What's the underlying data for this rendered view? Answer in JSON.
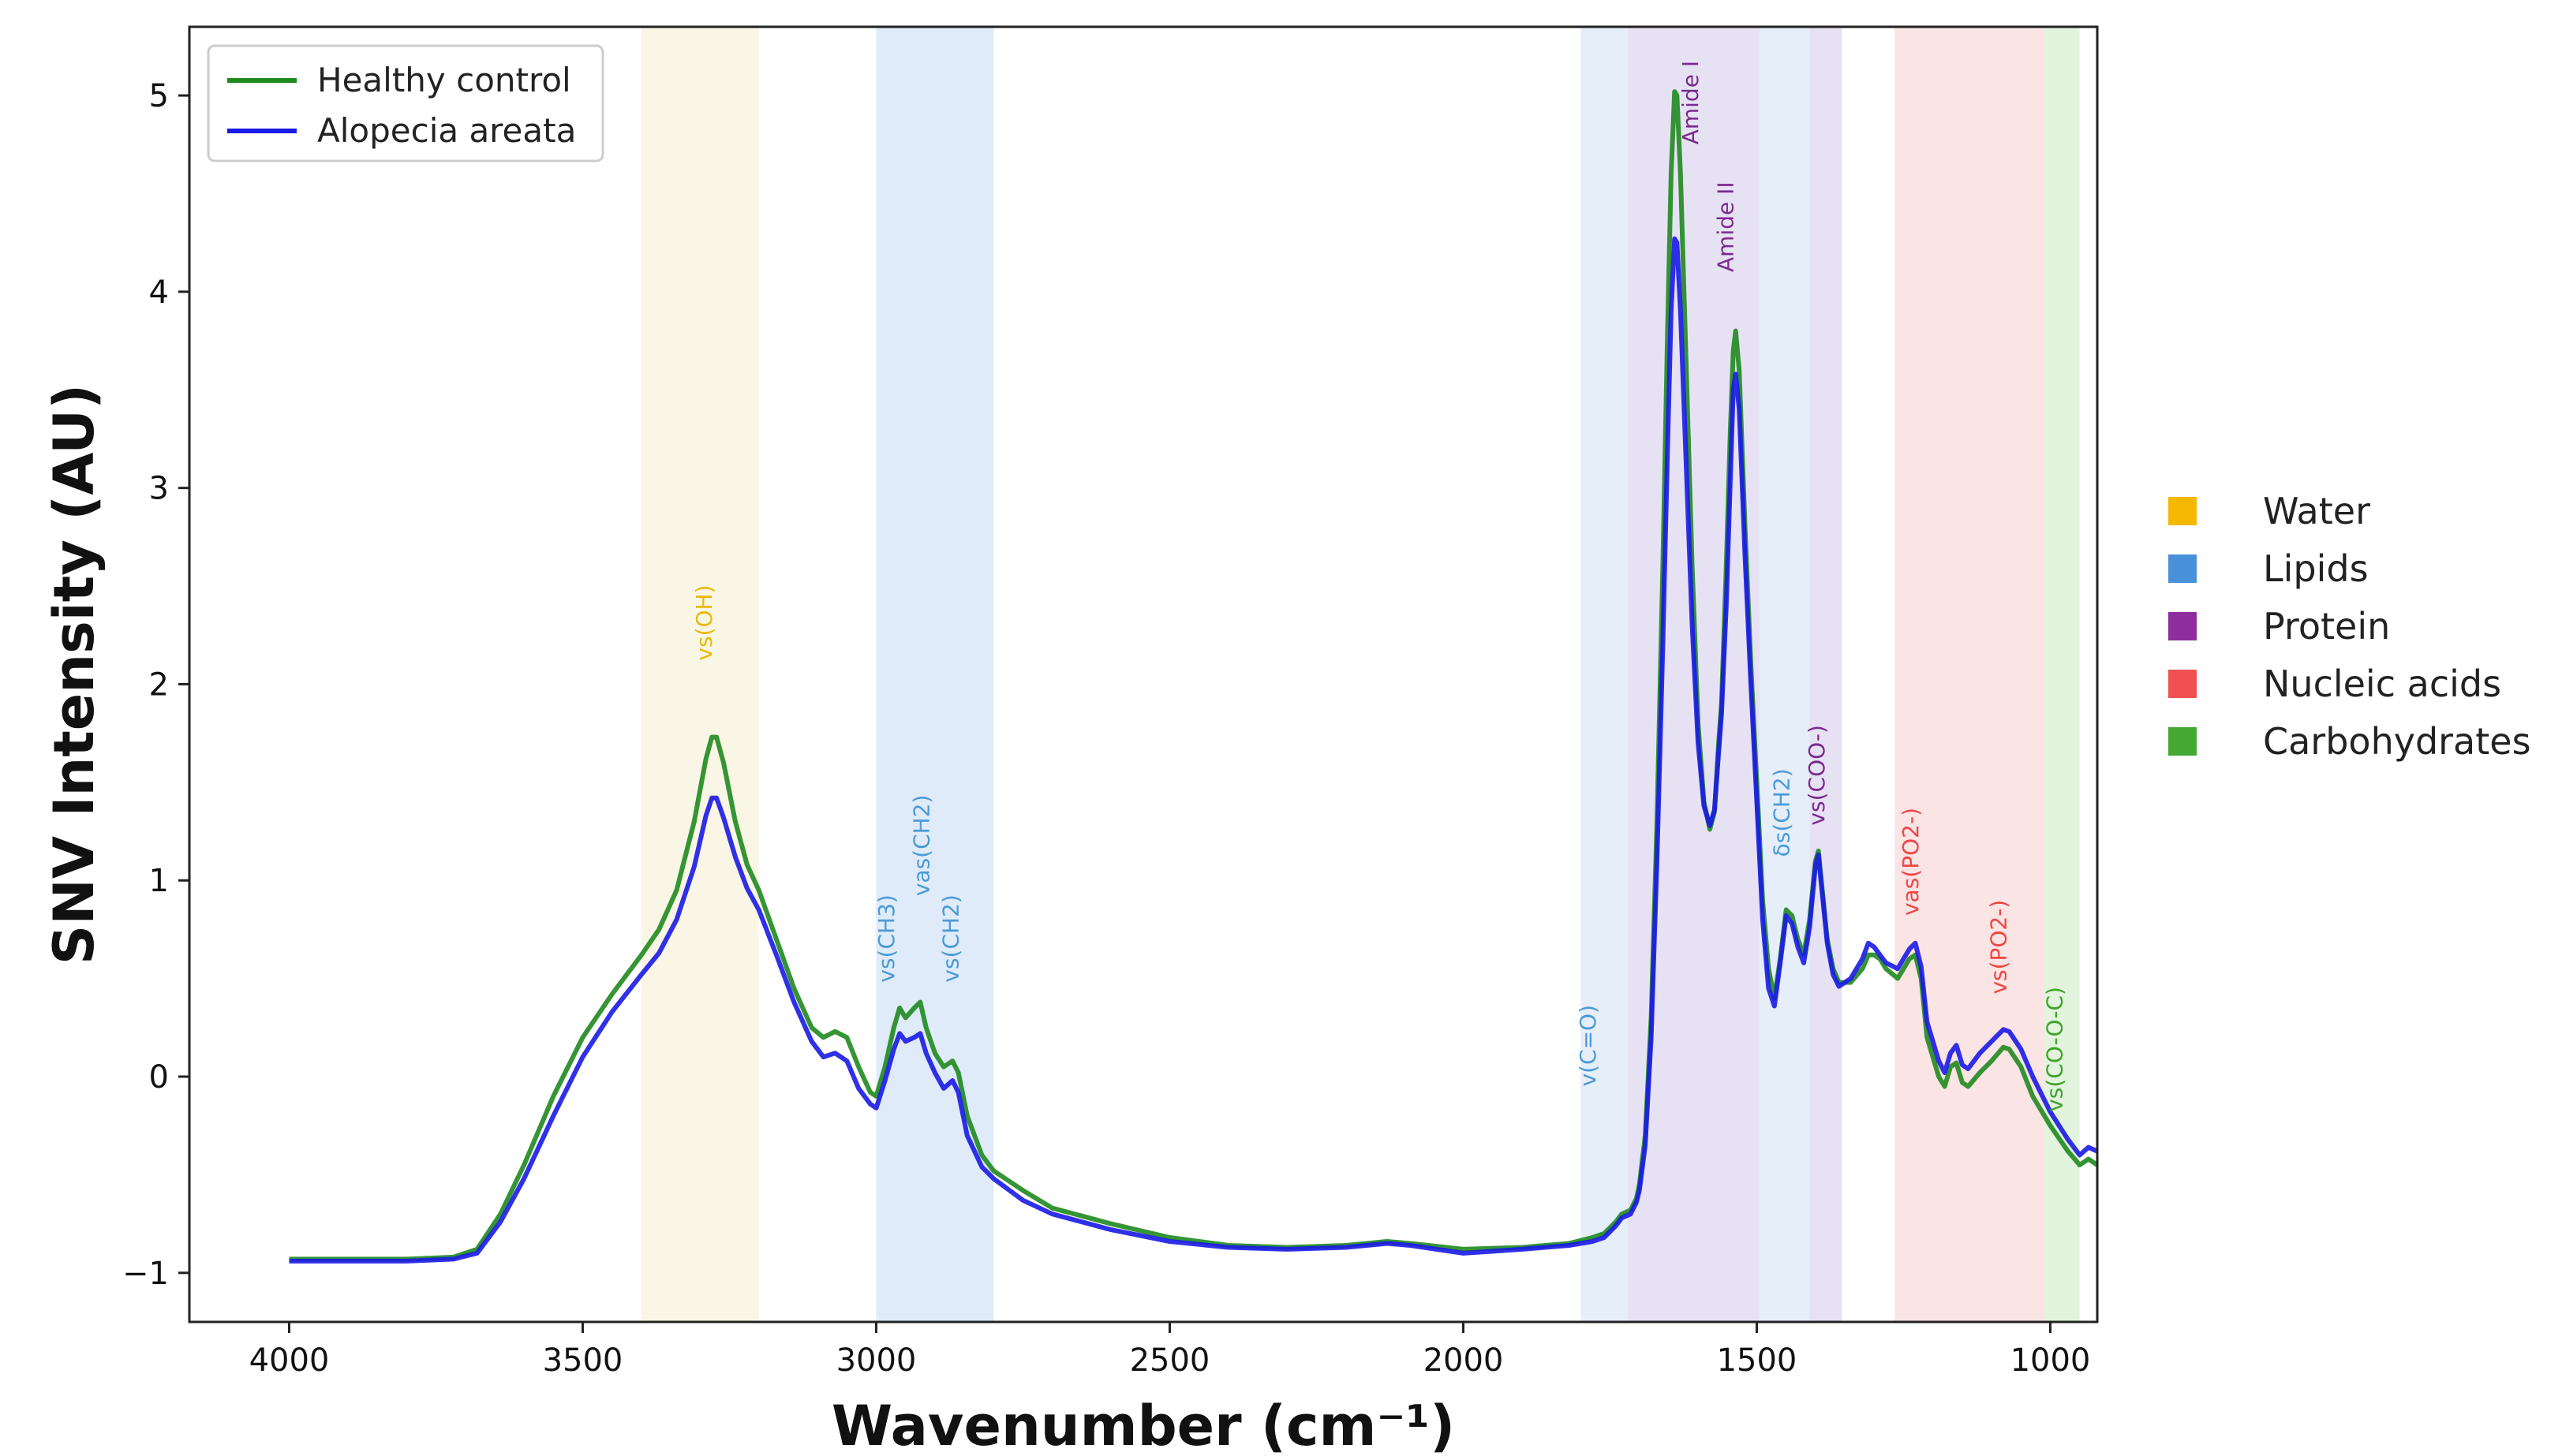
{
  "chart_data": {
    "type": "line",
    "title": "",
    "xlabel": "Wavenumber (cm⁻¹)",
    "ylabel": "SNV Intensity (AU)",
    "xlim": [
      4170,
      920
    ],
    "ylim": [
      -1.25,
      5.35
    ],
    "x_reversed": true,
    "x_ticks": [
      4000,
      3500,
      3000,
      2500,
      2000,
      1500,
      1000
    ],
    "x_tick_labels": [
      "4000",
      "3500",
      "3000",
      "2500",
      "2000",
      "1500",
      "1000"
    ],
    "y_ticks": [
      -1,
      0,
      1,
      2,
      3,
      4,
      5
    ],
    "y_tick_labels": [
      "−1",
      "0",
      "1",
      "2",
      "3",
      "4",
      "5"
    ],
    "legend_position": "top-left",
    "series": [
      {
        "name": "Healthy control",
        "color": "#1f8a1f",
        "points": [
          [
            4000,
            -0.93
          ],
          [
            3900,
            -0.93
          ],
          [
            3800,
            -0.93
          ],
          [
            3720,
            -0.92
          ],
          [
            3680,
            -0.88
          ],
          [
            3640,
            -0.7
          ],
          [
            3600,
            -0.45
          ],
          [
            3550,
            -0.1
          ],
          [
            3500,
            0.2
          ],
          [
            3450,
            0.42
          ],
          [
            3400,
            0.62
          ],
          [
            3370,
            0.75
          ],
          [
            3340,
            0.95
          ],
          [
            3310,
            1.3
          ],
          [
            3290,
            1.62
          ],
          [
            3280,
            1.73
          ],
          [
            3272,
            1.73
          ],
          [
            3260,
            1.6
          ],
          [
            3240,
            1.3
          ],
          [
            3220,
            1.08
          ],
          [
            3200,
            0.95
          ],
          [
            3170,
            0.7
          ],
          [
            3140,
            0.45
          ],
          [
            3110,
            0.25
          ],
          [
            3090,
            0.2
          ],
          [
            3070,
            0.23
          ],
          [
            3050,
            0.2
          ],
          [
            3030,
            0.05
          ],
          [
            3010,
            -0.08
          ],
          [
            3000,
            -0.1
          ],
          [
            2985,
            0.05
          ],
          [
            2970,
            0.25
          ],
          [
            2960,
            0.35
          ],
          [
            2950,
            0.3
          ],
          [
            2935,
            0.35
          ],
          [
            2925,
            0.38
          ],
          [
            2915,
            0.25
          ],
          [
            2900,
            0.12
          ],
          [
            2885,
            0.05
          ],
          [
            2870,
            0.08
          ],
          [
            2860,
            0.02
          ],
          [
            2845,
            -0.2
          ],
          [
            2820,
            -0.4
          ],
          [
            2800,
            -0.48
          ],
          [
            2750,
            -0.58
          ],
          [
            2700,
            -0.67
          ],
          [
            2600,
            -0.75
          ],
          [
            2500,
            -0.82
          ],
          [
            2400,
            -0.86
          ],
          [
            2300,
            -0.87
          ],
          [
            2200,
            -0.86
          ],
          [
            2130,
            -0.84
          ],
          [
            2090,
            -0.85
          ],
          [
            2000,
            -0.88
          ],
          [
            1900,
            -0.87
          ],
          [
            1820,
            -0.85
          ],
          [
            1780,
            -0.82
          ],
          [
            1760,
            -0.8
          ],
          [
            1740,
            -0.74
          ],
          [
            1730,
            -0.7
          ],
          [
            1715,
            -0.68
          ],
          [
            1705,
            -0.62
          ],
          [
            1700,
            -0.55
          ],
          [
            1690,
            -0.3
          ],
          [
            1680,
            0.3
          ],
          [
            1670,
            1.3
          ],
          [
            1660,
            2.6
          ],
          [
            1652,
            3.8
          ],
          [
            1646,
            4.6
          ],
          [
            1640,
            5.02
          ],
          [
            1636,
            5.0
          ],
          [
            1630,
            4.6
          ],
          [
            1620,
            3.6
          ],
          [
            1610,
            2.6
          ],
          [
            1600,
            1.8
          ],
          [
            1590,
            1.4
          ],
          [
            1580,
            1.26
          ],
          [
            1572,
            1.35
          ],
          [
            1565,
            1.7
          ],
          [
            1560,
            1.9
          ],
          [
            1552,
            2.6
          ],
          [
            1545,
            3.3
          ],
          [
            1540,
            3.7
          ],
          [
            1536,
            3.8
          ],
          [
            1530,
            3.6
          ],
          [
            1520,
            2.8
          ],
          [
            1510,
            2.1
          ],
          [
            1500,
            1.5
          ],
          [
            1490,
            0.9
          ],
          [
            1480,
            0.55
          ],
          [
            1470,
            0.4
          ],
          [
            1460,
            0.6
          ],
          [
            1450,
            0.85
          ],
          [
            1440,
            0.82
          ],
          [
            1430,
            0.7
          ],
          [
            1420,
            0.62
          ],
          [
            1410,
            0.8
          ],
          [
            1400,
            1.1
          ],
          [
            1395,
            1.15
          ],
          [
            1390,
            1.0
          ],
          [
            1380,
            0.7
          ],
          [
            1370,
            0.55
          ],
          [
            1360,
            0.48
          ],
          [
            1340,
            0.48
          ],
          [
            1320,
            0.55
          ],
          [
            1310,
            0.62
          ],
          [
            1300,
            0.62
          ],
          [
            1290,
            0.6
          ],
          [
            1280,
            0.55
          ],
          [
            1260,
            0.5
          ],
          [
            1240,
            0.6
          ],
          [
            1230,
            0.62
          ],
          [
            1220,
            0.5
          ],
          [
            1210,
            0.2
          ],
          [
            1190,
            0.0
          ],
          [
            1180,
            -0.05
          ],
          [
            1170,
            0.05
          ],
          [
            1160,
            0.07
          ],
          [
            1150,
            -0.03
          ],
          [
            1140,
            -0.05
          ],
          [
            1120,
            0.02
          ],
          [
            1100,
            0.08
          ],
          [
            1080,
            0.15
          ],
          [
            1070,
            0.14
          ],
          [
            1050,
            0.05
          ],
          [
            1030,
            -0.1
          ],
          [
            1000,
            -0.25
          ],
          [
            970,
            -0.38
          ],
          [
            950,
            -0.45
          ],
          [
            935,
            -0.42
          ],
          [
            920,
            -0.45
          ]
        ]
      },
      {
        "name": "Alopecia areata",
        "color": "#1a1ae6",
        "points": [
          [
            4000,
            -0.94
          ],
          [
            3900,
            -0.94
          ],
          [
            3800,
            -0.94
          ],
          [
            3720,
            -0.93
          ],
          [
            3680,
            -0.9
          ],
          [
            3640,
            -0.74
          ],
          [
            3600,
            -0.52
          ],
          [
            3550,
            -0.2
          ],
          [
            3500,
            0.1
          ],
          [
            3450,
            0.33
          ],
          [
            3400,
            0.52
          ],
          [
            3370,
            0.63
          ],
          [
            3340,
            0.8
          ],
          [
            3310,
            1.07
          ],
          [
            3290,
            1.33
          ],
          [
            3280,
            1.42
          ],
          [
            3272,
            1.42
          ],
          [
            3260,
            1.32
          ],
          [
            3240,
            1.12
          ],
          [
            3220,
            0.96
          ],
          [
            3200,
            0.85
          ],
          [
            3170,
            0.62
          ],
          [
            3140,
            0.38
          ],
          [
            3110,
            0.18
          ],
          [
            3090,
            0.1
          ],
          [
            3070,
            0.12
          ],
          [
            3050,
            0.08
          ],
          [
            3030,
            -0.06
          ],
          [
            3010,
            -0.14
          ],
          [
            3000,
            -0.16
          ],
          [
            2985,
            -0.02
          ],
          [
            2970,
            0.14
          ],
          [
            2960,
            0.22
          ],
          [
            2950,
            0.18
          ],
          [
            2935,
            0.2
          ],
          [
            2925,
            0.22
          ],
          [
            2915,
            0.12
          ],
          [
            2900,
            0.02
          ],
          [
            2885,
            -0.06
          ],
          [
            2870,
            -0.02
          ],
          [
            2860,
            -0.08
          ],
          [
            2845,
            -0.3
          ],
          [
            2820,
            -0.46
          ],
          [
            2800,
            -0.52
          ],
          [
            2750,
            -0.63
          ],
          [
            2700,
            -0.7
          ],
          [
            2600,
            -0.78
          ],
          [
            2500,
            -0.84
          ],
          [
            2400,
            -0.87
          ],
          [
            2300,
            -0.88
          ],
          [
            2200,
            -0.87
          ],
          [
            2130,
            -0.85
          ],
          [
            2090,
            -0.86
          ],
          [
            2000,
            -0.9
          ],
          [
            1900,
            -0.88
          ],
          [
            1820,
            -0.86
          ],
          [
            1780,
            -0.84
          ],
          [
            1760,
            -0.82
          ],
          [
            1740,
            -0.76
          ],
          [
            1730,
            -0.72
          ],
          [
            1715,
            -0.7
          ],
          [
            1705,
            -0.64
          ],
          [
            1700,
            -0.58
          ],
          [
            1690,
            -0.35
          ],
          [
            1680,
            0.2
          ],
          [
            1670,
            1.1
          ],
          [
            1660,
            2.2
          ],
          [
            1652,
            3.2
          ],
          [
            1646,
            3.9
          ],
          [
            1640,
            4.27
          ],
          [
            1636,
            4.25
          ],
          [
            1630,
            3.9
          ],
          [
            1620,
            3.1
          ],
          [
            1610,
            2.3
          ],
          [
            1600,
            1.7
          ],
          [
            1590,
            1.38
          ],
          [
            1580,
            1.28
          ],
          [
            1572,
            1.36
          ],
          [
            1565,
            1.65
          ],
          [
            1560,
            1.85
          ],
          [
            1552,
            2.4
          ],
          [
            1545,
            3.05
          ],
          [
            1540,
            3.5
          ],
          [
            1536,
            3.58
          ],
          [
            1530,
            3.4
          ],
          [
            1520,
            2.65
          ],
          [
            1510,
            2.0
          ],
          [
            1500,
            1.4
          ],
          [
            1490,
            0.8
          ],
          [
            1480,
            0.45
          ],
          [
            1470,
            0.36
          ],
          [
            1460,
            0.58
          ],
          [
            1450,
            0.82
          ],
          [
            1440,
            0.78
          ],
          [
            1430,
            0.66
          ],
          [
            1420,
            0.58
          ],
          [
            1410,
            0.76
          ],
          [
            1400,
            1.08
          ],
          [
            1395,
            1.13
          ],
          [
            1390,
            0.98
          ],
          [
            1380,
            0.68
          ],
          [
            1370,
            0.52
          ],
          [
            1360,
            0.46
          ],
          [
            1340,
            0.5
          ],
          [
            1320,
            0.6
          ],
          [
            1310,
            0.68
          ],
          [
            1300,
            0.66
          ],
          [
            1290,
            0.62
          ],
          [
            1280,
            0.58
          ],
          [
            1260,
            0.55
          ],
          [
            1240,
            0.65
          ],
          [
            1230,
            0.68
          ],
          [
            1220,
            0.56
          ],
          [
            1210,
            0.28
          ],
          [
            1190,
            0.08
          ],
          [
            1180,
            0.02
          ],
          [
            1170,
            0.12
          ],
          [
            1160,
            0.16
          ],
          [
            1150,
            0.06
          ],
          [
            1140,
            0.04
          ],
          [
            1120,
            0.12
          ],
          [
            1100,
            0.18
          ],
          [
            1080,
            0.24
          ],
          [
            1070,
            0.23
          ],
          [
            1050,
            0.14
          ],
          [
            1030,
            0.0
          ],
          [
            1000,
            -0.18
          ],
          [
            970,
            -0.32
          ],
          [
            950,
            -0.4
          ],
          [
            935,
            -0.36
          ],
          [
            920,
            -0.38
          ]
        ]
      }
    ],
    "bands": [
      {
        "x0": 3400,
        "x1": 3200,
        "class": "Water",
        "color": "#f5eecf",
        "opacity": 0.55
      },
      {
        "x0": 3000,
        "x1": 2800,
        "class": "Lipids",
        "color": "#c9def4",
        "opacity": 0.6
      },
      {
        "x0": 1800,
        "x1": 1720,
        "class": "Lipids",
        "color": "#d3e3f5",
        "opacity": 0.6
      },
      {
        "x0": 1720,
        "x1": 1495,
        "class": "Protein",
        "color": "#ddd5ee",
        "opacity": 0.7
      },
      {
        "x0": 1495,
        "x1": 1410,
        "class": "Lipids",
        "color": "#d3e3f5",
        "opacity": 0.6
      },
      {
        "x0": 1410,
        "x1": 1355,
        "class": "Protein",
        "color": "#ddd5ee",
        "opacity": 0.7
      },
      {
        "x0": 1265,
        "x1": 1010,
        "class": "Nucleic acids",
        "color": "#f9d2d2",
        "opacity": 0.6
      },
      {
        "x0": 1010,
        "x1": 950,
        "class": "Carbohydrates",
        "color": "#d6efd0",
        "opacity": 0.7
      }
    ],
    "annotations": [
      {
        "text": "vs(OH)",
        "x": 3280,
        "y": 2.12,
        "class": "Water"
      },
      {
        "text": "vs(CH3)",
        "x": 2970,
        "y": 0.48,
        "class": "Lipids"
      },
      {
        "text": "vas(CH2)",
        "x": 2910,
        "y": 0.92,
        "class": "Lipids"
      },
      {
        "text": "vs(CH2)",
        "x": 2860,
        "y": 0.48,
        "class": "Lipids"
      },
      {
        "text": "v(C=O)",
        "x": 1775,
        "y": -0.05,
        "class": "Lipids"
      },
      {
        "text": "Amide I",
        "x": 1600,
        "y": 4.75,
        "class": "Protein"
      },
      {
        "text": "Amide II",
        "x": 1540,
        "y": 4.1,
        "class": "Protein"
      },
      {
        "text": "δs(CH2)",
        "x": 1445,
        "y": 1.12,
        "class": "Lipids"
      },
      {
        "text": "vs(COO-)",
        "x": 1385,
        "y": 1.28,
        "class": "Protein"
      },
      {
        "text": "vas(PO2-)",
        "x": 1225,
        "y": 0.82,
        "class": "Nucleic acids"
      },
      {
        "text": "vs(PO2-)",
        "x": 1075,
        "y": 0.42,
        "class": "Nucleic acids"
      },
      {
        "text": "vs(CO-O-C)",
        "x": 980,
        "y": -0.18,
        "class": "Carbohydrates"
      }
    ]
  },
  "class_legend": [
    {
      "label": "Water",
      "color": "#f5b800"
    },
    {
      "label": "Lipids",
      "color": "#4a90d9"
    },
    {
      "label": "Protein",
      "color": "#8e2e9e"
    },
    {
      "label": "Nucleic acids",
      "color": "#f05050"
    },
    {
      "label": "Carbohydrates",
      "color": "#44a832"
    }
  ],
  "colors": {
    "Water": "#e8b90a",
    "Lipids": "#4a9ad8",
    "Protein": "#7a2a8e",
    "Nucleic acids": "#f04545",
    "Carbohydrates": "#3fa32a"
  }
}
